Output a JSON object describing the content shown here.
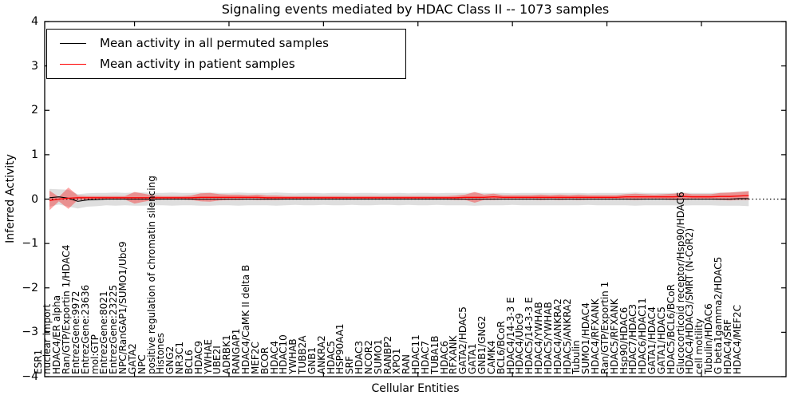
{
  "chart_data": {
    "type": "line",
    "title": "Signaling events mediated by HDAC Class II -- 1073 samples",
    "xlabel": "Cellular Entities",
    "ylabel": "Inferred Activity",
    "ylim": [
      -4,
      4
    ],
    "y_tick_labels": [
      "4",
      "3",
      "2",
      "1",
      "0",
      "−1",
      "−2",
      "−3",
      "−4"
    ],
    "y_tick_values": [
      4,
      3,
      2,
      1,
      0,
      -1,
      -2,
      -3,
      -4
    ],
    "x_major_tick_indices": [
      9,
      19,
      29,
      39,
      49,
      59,
      69
    ],
    "zero_line": {
      "value": 0,
      "style": "dotted",
      "color": "#000000"
    },
    "legend_position": "upper left",
    "grid": false,
    "categories": [
      "ESR1",
      "nuclear import",
      "HDAC4/ER alpha",
      "Ran/GTP/Exportin 1/HDAC4",
      "EntrezGene:9972",
      "EntrezGene:23636",
      "mol:GTP",
      "EntrezGene:8021",
      "EntrezGene:23225",
      "NPC/RanGAP1/SUMO1/Ubc9",
      "GATA2",
      "NPC",
      "positive regulation of chromatin silencing",
      "Histones",
      "GNG2",
      "NR3C1",
      "BCL6",
      "HDAC9",
      "YWHAE",
      "UBE2I",
      "ADRBK1",
      "RANGAP1",
      "HDAC4/CaMK II delta B",
      "MEF2C",
      "BCOR",
      "HDAC4",
      "HDAC10",
      "YWHAB",
      "TUBB2A",
      "GNB1",
      "ANKRA2",
      "HDAC5",
      "HSP90AA1",
      "SRF",
      "HDAC3",
      "NCOR2",
      "SUMO1",
      "RANBP2",
      "XPO1",
      "RAN",
      "HDAC11",
      "HDAC7",
      "TUBA1B",
      "HDAC6",
      "RFXANK",
      "GATA2/HDAC5",
      "GATA1",
      "GNB1/GNG2",
      "CAMK4",
      "BCL6/BCoR",
      "HDAC4/14-3-3 E",
      "HDAC4/Ubc9",
      "HDAC5/14-3-3 E",
      "HDAC4/YWHAB",
      "HDAC5/YWHAB",
      "HDAC4/ANKRA2",
      "HDAC5/ANKRA2",
      "Tubulin",
      "SUMO1/HDAC4",
      "HDAC4/RFXANK",
      "Ran/GTP/Exportin 1",
      "HDAC5/RFXANK",
      "Hsp90/HDAC6",
      "HDAC7/HDAC3",
      "HDAC6/HDAC11",
      "GATA1/HDAC4",
      "GATA1/HDAC5",
      "HDAC5/BCL6/BCoR",
      "Glucocorticoid receptor/Hsp90/HDAC6",
      "HDAC4/HDAC3/SMRT (N-CoR2)",
      "cell motility",
      "Tubulin/HDAC6",
      "G beta1gamma2/HDAC5",
      "HDAC4/SRF",
      "HDAC4/MEF2C"
    ],
    "series": [
      {
        "name": "Mean activity in all permuted samples",
        "color": "#000000",
        "band_color": "rgba(0,0,0,0.13)",
        "mean": [
          0.03,
          0.05,
          0.02,
          -0.05,
          -0.02,
          -0.01,
          0,
          0,
          0,
          0,
          0,
          0,
          0,
          0,
          0,
          0,
          0,
          0,
          0,
          0,
          0,
          0,
          0,
          0,
          0,
          0,
          0,
          0,
          0,
          0,
          0,
          0,
          0,
          0,
          0,
          0,
          0,
          0,
          0,
          0,
          0,
          0,
          0,
          0,
          0,
          0,
          0,
          0,
          0,
          0,
          0,
          0,
          0,
          0,
          0,
          0,
          0,
          0,
          0,
          0,
          0,
          0,
          0,
          0,
          0,
          0,
          0,
          0,
          0,
          0,
          0,
          0,
          0,
          0.01,
          0.01
        ],
        "std": [
          0.2,
          0.17,
          0.19,
          0.16,
          0.15,
          0.15,
          0.14,
          0.15,
          0.14,
          0.15,
          0.15,
          0.14,
          0.14,
          0.15,
          0.14,
          0.14,
          0.15,
          0.15,
          0.14,
          0.14,
          0.15,
          0.14,
          0.14,
          0.14,
          0.15,
          0.14,
          0.13,
          0.14,
          0.14,
          0.13,
          0.14,
          0.14,
          0.13,
          0.14,
          0.14,
          0.13,
          0.13,
          0.14,
          0.13,
          0.14,
          0.14,
          0.13,
          0.14,
          0.14,
          0.14,
          0.15,
          0.14,
          0.14,
          0.14,
          0.13,
          0.14,
          0.14,
          0.14,
          0.14,
          0.14,
          0.14,
          0.14,
          0.13,
          0.14,
          0.14,
          0.14,
          0.14,
          0.15,
          0.14,
          0.14,
          0.14,
          0.14,
          0.15,
          0.14,
          0.14,
          0.14,
          0.15,
          0.15,
          0.16,
          0.17
        ]
      },
      {
        "name": "Mean activity in patient samples",
        "color": "#ff0000",
        "band_color": "rgba(255,0,0,0.35)",
        "mean": [
          -0.03,
          0.0,
          0.02,
          0.03,
          0.03,
          0.03,
          0.03,
          0.03,
          0.03,
          0.03,
          0.03,
          0.03,
          0.03,
          0.03,
          0.03,
          0.03,
          0.04,
          0.04,
          0.04,
          0.04,
          0.04,
          0.04,
          0.04,
          0.03,
          0.03,
          0.03,
          0.03,
          0.03,
          0.03,
          0.03,
          0.03,
          0.03,
          0.03,
          0.03,
          0.03,
          0.03,
          0.03,
          0.03,
          0.03,
          0.03,
          0.03,
          0.03,
          0.03,
          0.03,
          0.04,
          0.04,
          0.04,
          0.05,
          0.04,
          0.04,
          0.04,
          0.04,
          0.04,
          0.04,
          0.04,
          0.04,
          0.04,
          0.04,
          0.04,
          0.04,
          0.04,
          0.05,
          0.05,
          0.05,
          0.05,
          0.05,
          0.05,
          0.06,
          0.05,
          0.05,
          0.05,
          0.06,
          0.06,
          0.07,
          0.08
        ],
        "std": [
          0.22,
          0.05,
          0.24,
          0.05,
          0.04,
          0.04,
          0.04,
          0.04,
          0.04,
          0.13,
          0.09,
          0.05,
          0.04,
          0.04,
          0.04,
          0.05,
          0.09,
          0.1,
          0.07,
          0.06,
          0.06,
          0.05,
          0.06,
          0.05,
          0.05,
          0.04,
          0.04,
          0.04,
          0.04,
          0.04,
          0.04,
          0.04,
          0.04,
          0.04,
          0.04,
          0.04,
          0.04,
          0.04,
          0.04,
          0.04,
          0.04,
          0.04,
          0.04,
          0.05,
          0.06,
          0.12,
          0.06,
          0.07,
          0.05,
          0.05,
          0.05,
          0.05,
          0.06,
          0.05,
          0.06,
          0.05,
          0.06,
          0.05,
          0.05,
          0.05,
          0.05,
          0.06,
          0.07,
          0.06,
          0.05,
          0.06,
          0.07,
          0.08,
          0.06,
          0.06,
          0.06,
          0.08,
          0.09,
          0.09,
          0.1
        ]
      }
    ]
  },
  "legend": {
    "entries": [
      {
        "label": "Mean activity in all permuted samples",
        "color": "#000000"
      },
      {
        "label": "Mean activity in patient samples",
        "color": "#ff0000"
      }
    ]
  }
}
